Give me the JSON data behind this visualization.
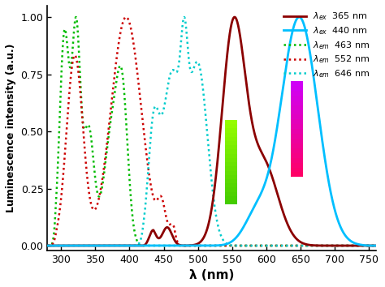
{
  "xlabel": "λ (nm)",
  "ylabel": "Luminescence intensity (a.u.)",
  "xlim": [
    280,
    760
  ],
  "ylim": [
    -0.02,
    1.05
  ],
  "yticks": [
    0.0,
    0.25,
    0.5,
    0.75,
    1.0
  ],
  "xticks": [
    300,
    350,
    400,
    450,
    500,
    550,
    600,
    650,
    700,
    750
  ],
  "line_dark_red_color": "#8B0000",
  "line_cyan_color": "#00BFFF",
  "line_green_dot_color": "#00BB00",
  "line_red_dot_color": "#CC0000",
  "line_cyan_dot_color": "#00CCCC"
}
